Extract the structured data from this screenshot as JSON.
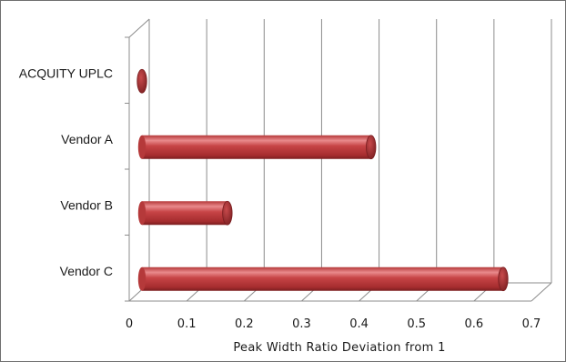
{
  "chart_data": {
    "type": "bar",
    "orientation": "horizontal",
    "style": "3d-cylinder",
    "categories": [
      "ACQUITY UPLC",
      "Vendor A",
      "Vendor B",
      "Vendor C"
    ],
    "values": [
      0.004,
      0.405,
      0.155,
      0.635
    ],
    "xlabel": "Peak Width Ratio Deviation from 1",
    "ylabel": "",
    "xlim": [
      0,
      0.7
    ],
    "ticks": [
      "0",
      "0.1",
      "0.2",
      "0.3",
      "0.4",
      "0.5",
      "0.6",
      "0.7"
    ],
    "grid": true,
    "legend": "none",
    "bar_color": "#c0393b",
    "bar_highlight": "#e98a8c",
    "bar_shadow": "#7a1e20",
    "grid_color": "#8c8c8c"
  }
}
